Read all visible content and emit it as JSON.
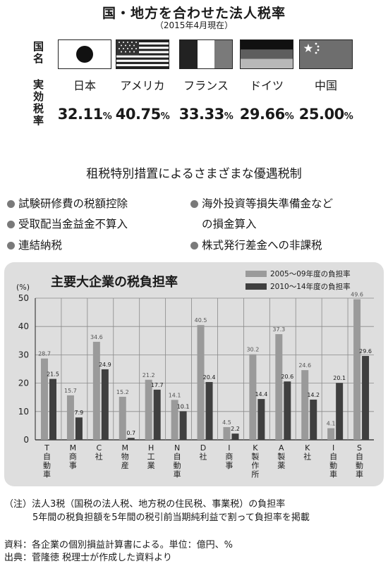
{
  "header": {
    "title": "国・地方を合わせた法人税率",
    "subtitle": "（2015年4月現在）",
    "row_label_country": "国名",
    "row_label_rate": "実効税率"
  },
  "countries": [
    {
      "name": "日本",
      "rate": "32.11",
      "unit": "%",
      "flag": "japan-flag-icon"
    },
    {
      "name": "アメリカ",
      "rate": "40.75",
      "unit": "%",
      "flag": "usa-flag-icon"
    },
    {
      "name": "フランス",
      "rate": "33.33",
      "unit": "%",
      "flag": "france-flag-icon"
    },
    {
      "name": "ドイツ",
      "rate": "29.66",
      "unit": "%",
      "flag": "germany-flag-icon"
    },
    {
      "name": "中国",
      "rate": "25.00",
      "unit": "%",
      "flag": "china-flag-icon"
    }
  ],
  "measures": {
    "title": "租税特別措置によるさまざまな優遇税制",
    "items": [
      "試験研修費の税額控除",
      "受取配当金益金不算入",
      "連結納税",
      "海外投資等損失準備金など",
      "の損金算入",
      "株式発行差金への非課税"
    ]
  },
  "chart_data": {
    "type": "bar",
    "title": "主要大企業の税負担率",
    "ylabel": "(%)",
    "ylim": [
      0,
      50
    ],
    "yticks": [
      0,
      10,
      20,
      30,
      40,
      50
    ],
    "grid": true,
    "legend_position": "top-right",
    "categories": [
      [
        "T",
        "自",
        "動",
        "車"
      ],
      [
        "M",
        "商",
        "事"
      ],
      [
        "C",
        "社"
      ],
      [
        "M",
        "物",
        "産"
      ],
      [
        "H",
        "工",
        "業"
      ],
      [
        "N",
        "自",
        "動",
        "車"
      ],
      [
        "D",
        "社"
      ],
      [
        "I",
        "商",
        "事"
      ],
      [
        "K",
        "製",
        "作",
        "所"
      ],
      [
        "A",
        "製",
        "薬"
      ],
      [
        "K",
        "社"
      ],
      [
        "I",
        "自",
        "動",
        "車"
      ],
      [
        "S",
        "自",
        "動",
        "車"
      ]
    ],
    "series": [
      {
        "name": "2005～09年度の負担率",
        "color": "#9a9a9a",
        "values": [
          28.7,
          15.7,
          34.6,
          15.2,
          21.2,
          14.1,
          40.5,
          4.5,
          30.2,
          37.3,
          24.6,
          4.1,
          49.6
        ],
        "labels": [
          "28.7",
          "15.7",
          "34.6",
          "15.2",
          "21.2",
          "14.1",
          "40.5",
          "4.5",
          "30.2",
          "37.3",
          "24.6",
          "4.1",
          "49.6"
        ]
      },
      {
        "name": "2010～14年度の負担率",
        "color": "#3f3f3f",
        "values": [
          21.5,
          7.9,
          24.9,
          0.7,
          17.7,
          10.1,
          20.4,
          2.2,
          14.4,
          20.6,
          14.2,
          20.1,
          29.6
        ],
        "labels": [
          "21.5",
          "7.9",
          "24.9",
          "0.7",
          "17.7",
          "10.1",
          "20.4",
          "2.2",
          "14.4",
          "20.6",
          "14.2",
          "20.1",
          "29.6"
        ]
      }
    ]
  },
  "notes": {
    "note_line1": "（注）法人3税（国税の法人税、地方税の住民税、事業税）の負担率",
    "note_line2": "5年間の税負担額を5年間の税引前当期純利益で割って負担率を掲載",
    "source_line1": "資料：各企業の個別損益計算書による。単位：億円、%",
    "source_line2": "出典：菅隆徳 税理士が作成した資料より"
  }
}
